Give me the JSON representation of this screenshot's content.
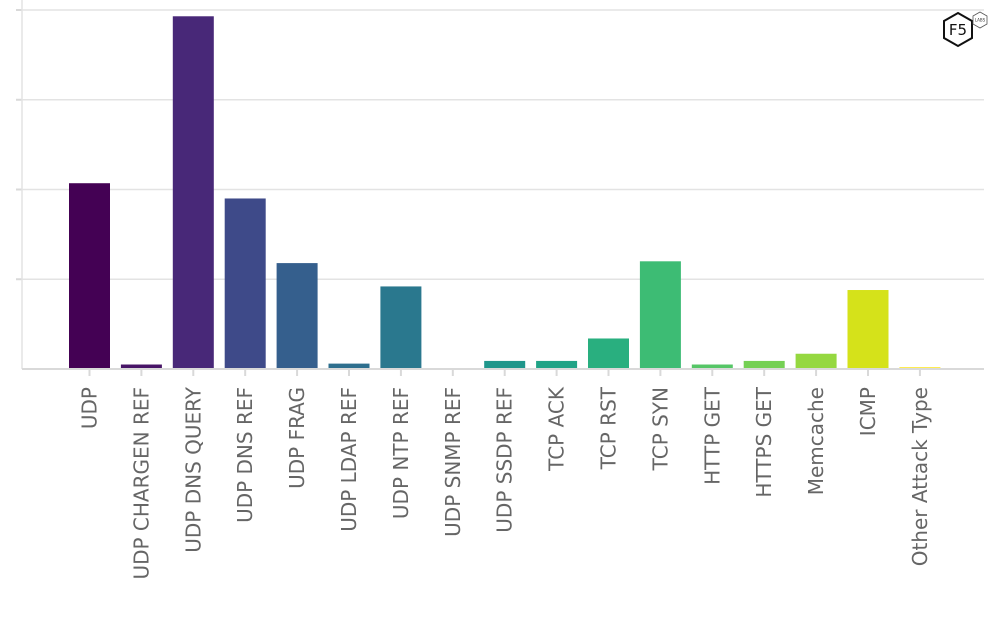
{
  "chart_data": {
    "type": "bar",
    "title": "",
    "xlabel": "",
    "ylabel": "",
    "categories": [
      "UDP",
      "UDP CHARGEN REF",
      "UDP DNS QUERY",
      "UDP DNS REF",
      "UDP FRAG",
      "UDP LDAP REF",
      "UDP NTP REF",
      "UDP SNMP REF",
      "UDP SSDP REF",
      "TCP ACK",
      "TCP RST",
      "TCP SYN",
      "HTTP GET",
      "HTTPS GET",
      "Memcache",
      "ICMP",
      "Other Attack Type"
    ],
    "values": [
      2.07,
      0.05,
      3.93,
      1.9,
      1.18,
      0.06,
      0.92,
      0.0,
      0.09,
      0.09,
      0.34,
      1.2,
      0.05,
      0.09,
      0.17,
      0.88,
      0.02
    ],
    "colors": [
      "#440154",
      "#481567",
      "#482878",
      "#3e4a89",
      "#355f8d",
      "#2e6f8e",
      "#2a788e",
      "#23888e",
      "#1f968b",
      "#20a386",
      "#29af7f",
      "#3dbc74",
      "#56c667",
      "#75d054",
      "#95d840",
      "#d5e21a",
      "#fde725"
    ],
    "ylim": [
      0,
      4.0
    ],
    "y_gridlines": [
      0,
      1,
      2,
      3,
      4
    ],
    "y_tick_labels_shown": false,
    "grid": true,
    "legend": "none"
  },
  "logo": {
    "text": "F5",
    "subtext": "LABS",
    "icon": "f5-labs-logo-icon"
  }
}
